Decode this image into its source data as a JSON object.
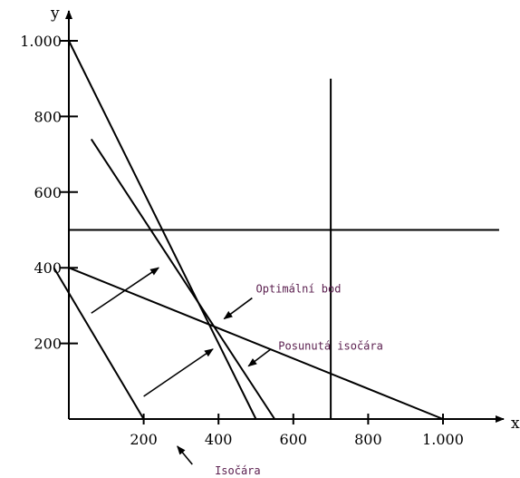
{
  "chart_data": {
    "type": "line",
    "title": "",
    "xlabel": "x",
    "ylabel": "y",
    "xlim": [
      0,
      1150
    ],
    "ylim": [
      0,
      1000
    ],
    "x_ticks": [
      {
        "value": 200,
        "label": "200"
      },
      {
        "value": 400,
        "label": "400"
      },
      {
        "value": 600,
        "label": "600"
      },
      {
        "value": 800,
        "label": "800"
      },
      {
        "value": 1000,
        "label": "1.000"
      }
    ],
    "y_ticks": [
      {
        "value": 200,
        "label": "200"
      },
      {
        "value": 400,
        "label": "400"
      },
      {
        "value": 600,
        "label": "600"
      },
      {
        "value": 800,
        "label": "800"
      },
      {
        "value": 1000,
        "label": "1.000"
      }
    ],
    "series": [
      {
        "points": [
          [
            0,
            1000
          ],
          [
            500,
            0
          ]
        ]
      },
      {
        "points": [
          [
            60,
            740
          ],
          [
            550,
            0
          ]
        ]
      },
      {
        "points": [
          [
            0,
            500
          ],
          [
            1150,
            500
          ]
        ]
      },
      {
        "points": [
          [
            700,
            0
          ],
          [
            700,
            900
          ]
        ]
      },
      {
        "points": [
          [
            0,
            400
          ],
          [
            1000,
            0
          ]
        ]
      },
      {
        "points": [
          [
            -40,
            400
          ],
          [
            200,
            0
          ]
        ]
      }
    ],
    "direction_arrows": [
      {
        "from": [
          60,
          280
        ],
        "to": [
          240,
          400
        ]
      },
      {
        "from": [
          200,
          60
        ],
        "to": [
          385,
          185
        ]
      }
    ],
    "annotations": [
      {
        "text": "Optimální bod",
        "text_at": [
          500,
          335
        ],
        "from": [
          490,
          320
        ],
        "to": [
          415,
          265
        ]
      },
      {
        "text": "Posunutá isočára",
        "text_at": [
          560,
          183
        ],
        "from": [
          540,
          185
        ],
        "to": [
          480,
          140
        ]
      },
      {
        "text": "Isočára",
        "text_at": [
          390,
          -146
        ],
        "from": [
          330,
          -120
        ],
        "to": [
          290,
          -72
        ]
      }
    ],
    "grid": false,
    "legend": "none"
  }
}
